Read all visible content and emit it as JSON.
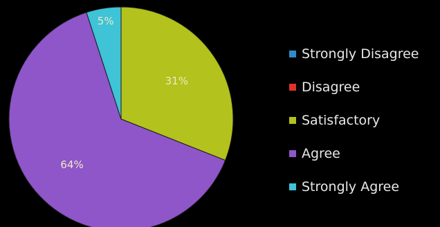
{
  "chart_data": {
    "type": "pie",
    "title": "",
    "legend_position": "right",
    "series": [
      {
        "slices": [
          {
            "label": "Strongly Disagree",
            "value": 0,
            "color": "#2E8BCB",
            "data_label": ""
          },
          {
            "label": "Disagree",
            "value": 0,
            "color": "#E0322A",
            "data_label": ""
          },
          {
            "label": "Satisfactory",
            "value": 31,
            "color": "#B3C21C",
            "data_label": "31%"
          },
          {
            "label": "Agree",
            "value": 64,
            "color": "#8E56C9",
            "data_label": "64%"
          },
          {
            "label": "Strongly Agree",
            "value": 5,
            "color": "#3EC3D7",
            "data_label": "5%"
          }
        ]
      }
    ]
  }
}
